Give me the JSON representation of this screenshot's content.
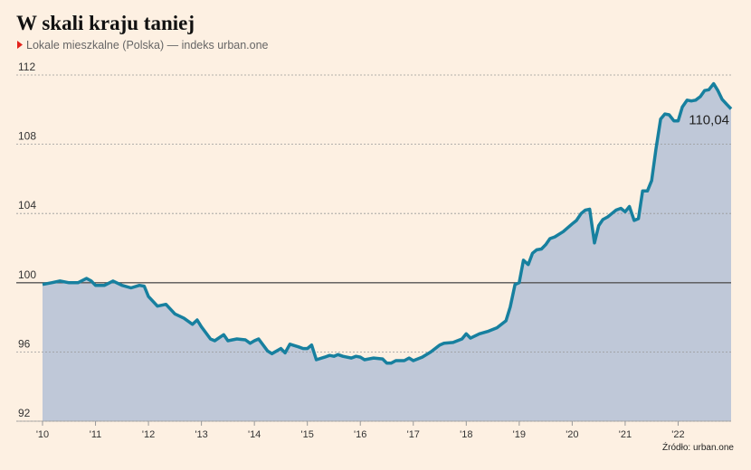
{
  "chart_data": {
    "type": "line",
    "title": "W skali kraju taniej",
    "subtitle": "Lokale mieszkalne (Polska) — indeks urban.one",
    "source": "Źródło: urban.one",
    "annotation": "110,04",
    "x": [
      2010.0,
      2010.17,
      2010.33,
      2010.5,
      2010.67,
      2010.83,
      2010.92,
      2011.0,
      2011.17,
      2011.33,
      2011.5,
      2011.67,
      2011.83,
      2011.92,
      2012.0,
      2012.17,
      2012.33,
      2012.5,
      2012.67,
      2012.83,
      2012.92,
      2013.0,
      2013.17,
      2013.25,
      2013.42,
      2013.5,
      2013.67,
      2013.83,
      2013.92,
      2014.0,
      2014.08,
      2014.25,
      2014.33,
      2014.5,
      2014.58,
      2014.67,
      2014.83,
      2014.92,
      2015.0,
      2015.08,
      2015.17,
      2015.33,
      2015.42,
      2015.5,
      2015.58,
      2015.67,
      2015.83,
      2015.92,
      2016.0,
      2016.08,
      2016.25,
      2016.42,
      2016.5,
      2016.58,
      2016.67,
      2016.83,
      2016.92,
      2017.0,
      2017.17,
      2017.33,
      2017.5,
      2017.58,
      2017.75,
      2017.92,
      2018.0,
      2018.08,
      2018.25,
      2018.42,
      2018.58,
      2018.75,
      2018.83,
      2018.92,
      2019.0,
      2019.08,
      2019.17,
      2019.25,
      2019.33,
      2019.42,
      2019.5,
      2019.58,
      2019.67,
      2019.83,
      2020.0,
      2020.08,
      2020.17,
      2020.25,
      2020.33,
      2020.42,
      2020.5,
      2020.58,
      2020.67,
      2020.75,
      2020.83,
      2020.92,
      2021.0,
      2021.08,
      2021.17,
      2021.25,
      2021.33,
      2021.42,
      2021.5,
      2021.58,
      2021.67,
      2021.75,
      2021.83,
      2021.92,
      2022.0,
      2022.08,
      2022.17,
      2022.25,
      2022.33,
      2022.42,
      2022.5,
      2022.58,
      2022.67,
      2022.75,
      2022.83,
      2022.92,
      2023.0
    ],
    "series": [
      {
        "name": "indeks urban.one",
        "color": "#17809f",
        "fill": "#bfc8d8",
        "values": [
          99.9,
          100.0,
          100.1,
          100.0,
          100.0,
          100.25,
          100.1,
          99.85,
          99.85,
          100.1,
          99.85,
          99.7,
          99.85,
          99.8,
          99.2,
          98.65,
          98.75,
          98.2,
          97.95,
          97.6,
          97.85,
          97.45,
          96.75,
          96.65,
          97.0,
          96.65,
          96.75,
          96.7,
          96.5,
          96.65,
          96.75,
          96.05,
          95.9,
          96.2,
          95.95,
          96.45,
          96.3,
          96.2,
          96.2,
          96.4,
          95.55,
          95.7,
          95.8,
          95.75,
          95.85,
          95.75,
          95.65,
          95.75,
          95.7,
          95.55,
          95.65,
          95.6,
          95.35,
          95.35,
          95.5,
          95.5,
          95.65,
          95.5,
          95.7,
          96.0,
          96.4,
          96.5,
          96.55,
          96.75,
          97.05,
          96.8,
          97.05,
          97.2,
          97.4,
          97.8,
          98.6,
          99.9,
          100.0,
          101.3,
          101.05,
          101.7,
          101.9,
          101.95,
          102.2,
          102.55,
          102.65,
          102.95,
          103.4,
          103.6,
          104.0,
          104.2,
          104.25,
          102.3,
          103.3,
          103.65,
          103.8,
          104.0,
          104.2,
          104.3,
          104.1,
          104.4,
          103.6,
          103.7,
          105.3,
          105.3,
          105.9,
          107.7,
          109.45,
          109.75,
          109.7,
          109.35,
          109.35,
          110.15,
          110.55,
          110.5,
          110.55,
          110.75,
          111.1,
          111.15,
          111.5,
          111.1,
          110.6,
          110.3,
          110.04
        ]
      }
    ],
    "xlim": [
      2010,
      2023
    ],
    "xticks": [
      {
        "value": 2010,
        "label": "'10"
      },
      {
        "value": 2011,
        "label": "'11"
      },
      {
        "value": 2012,
        "label": "'12"
      },
      {
        "value": 2013,
        "label": "'13"
      },
      {
        "value": 2014,
        "label": "'14"
      },
      {
        "value": 2015,
        "label": "'15"
      },
      {
        "value": 2016,
        "label": "'16"
      },
      {
        "value": 2017,
        "label": "'17"
      },
      {
        "value": 2018,
        "label": "'18"
      },
      {
        "value": 2019,
        "label": "'19"
      },
      {
        "value": 2020,
        "label": "'20"
      },
      {
        "value": 2021,
        "label": "'21"
      },
      {
        "value": 2022,
        "label": "'22"
      }
    ],
    "ylim": [
      92,
      112
    ],
    "yticks": [
      92,
      96,
      100,
      104,
      108,
      112
    ],
    "reference_line": 100,
    "grid": true
  }
}
